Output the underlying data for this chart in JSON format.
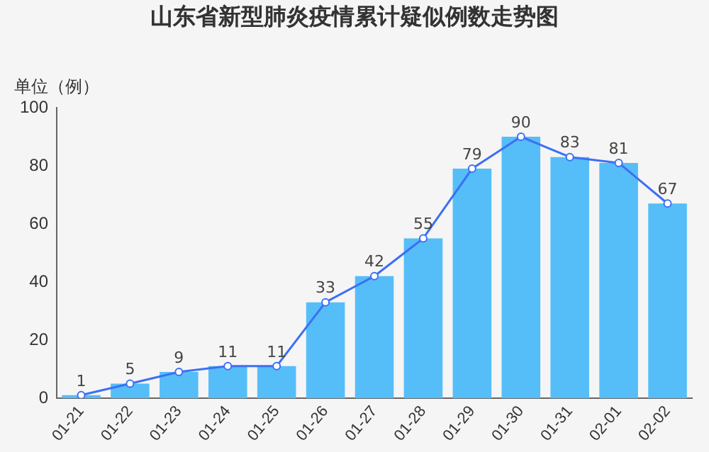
{
  "chart_data": {
    "type": "bar",
    "title": "山东省新型肺炎疫情累计疑似例数走势图",
    "ylabel": "单位（例）",
    "categories": [
      "01-21",
      "01-22",
      "01-23",
      "01-24",
      "01-25",
      "01-26",
      "01-27",
      "01-28",
      "01-29",
      "01-30",
      "01-31",
      "02-01",
      "02-02"
    ],
    "series": [
      {
        "color": "#55bef8",
        "values": [
          1,
          5,
          9,
          11,
          11,
          33,
          42,
          55,
          79,
          90,
          83,
          81,
          67
        ]
      },
      {
        "type": "line",
        "color": "#3d6ff5",
        "values": [
          1,
          5,
          9,
          11,
          11,
          33,
          42,
          55,
          79,
          90,
          83,
          81,
          67
        ],
        "value_labels": [
          "1",
          "5",
          "9",
          "11",
          "11",
          "33",
          "42",
          "55",
          "79",
          "90",
          "83",
          "81",
          "67"
        ]
      }
    ],
    "ylim": [
      0,
      100
    ],
    "yticks": [
      0,
      20,
      40,
      60,
      80,
      100
    ],
    "grid": false,
    "legend": false,
    "marker": "circle",
    "line_style": "solid"
  }
}
